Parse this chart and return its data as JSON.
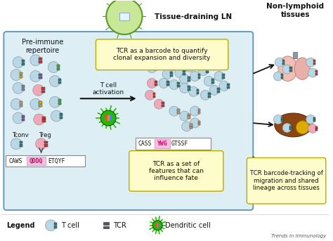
{
  "subtitle_journal": "Trends in Immunology",
  "main_box_color": "#ddeef5",
  "main_box_edge": "#6699bb",
  "tissue_label": "Non-lymphoid\ntissues",
  "ln_label": "Tissue-draining LN",
  "pre_immune_label": "Pre-immune\nrepertoire",
  "t_cell_activation_label": "T cell\nactivation",
  "tcr_barcode_label": "TCR as a barcode to quantify\nclonal expansion and diversity",
  "tcr_features_label": "TCR as a set of\nfeatures that can\ninfluence fate",
  "tcr_tracking_label": "TCR barcode-tracking of\nmigration and shared\nlineage across tissues",
  "tconv_label": "Tconv",
  "treg_label": "Treg",
  "cdr3_1_a": "CAWS",
  "cdr3_1_b": "QDDQ",
  "cdr3_1_c": "ETQYF",
  "cdr3_2_a": "CASS",
  "cdr3_2_b": "YWG",
  "cdr3_2_c": "GTSSF",
  "legend_label": "Legend",
  "legend_tcell": "T cell",
  "legend_tcr": "TCR",
  "legend_dc": "Dendritic cell",
  "bg_color": "#ffffff",
  "cell_blue": "#b8d8e8",
  "cell_pink": "#f0a8b8",
  "cell_edge": "#999999",
  "tcr_teal": "#2a8080",
  "tcr_red": "#cc3333",
  "tcr_yellow": "#ddaa00",
  "tcr_purple": "#7755aa",
  "tcr_green": "#44aa44",
  "tcr_gray": "#888888",
  "tcr_tan": "#c8a070",
  "tcr_darkgray": "#555566",
  "ln_fill": "#c8e898",
  "ln_edge": "#5a9922",
  "dc_fill": "#22bb00",
  "dc_edge": "#115500",
  "lung_fill": "#f0c0b8",
  "lung_edge": "#cc8880",
  "liver_fill": "#8B4513",
  "liver_edge": "#5a2d0c",
  "gall_fill": "#ddaa00",
  "gut_fill": "#cc9090",
  "gut_edge": "#aa5555",
  "box_yellow_fill": "#fffccc",
  "box_yellow_edge": "#bbaa00",
  "arrow_color": "#111111",
  "text_color": "#111111",
  "seq_highlight": "#f8c0e0"
}
